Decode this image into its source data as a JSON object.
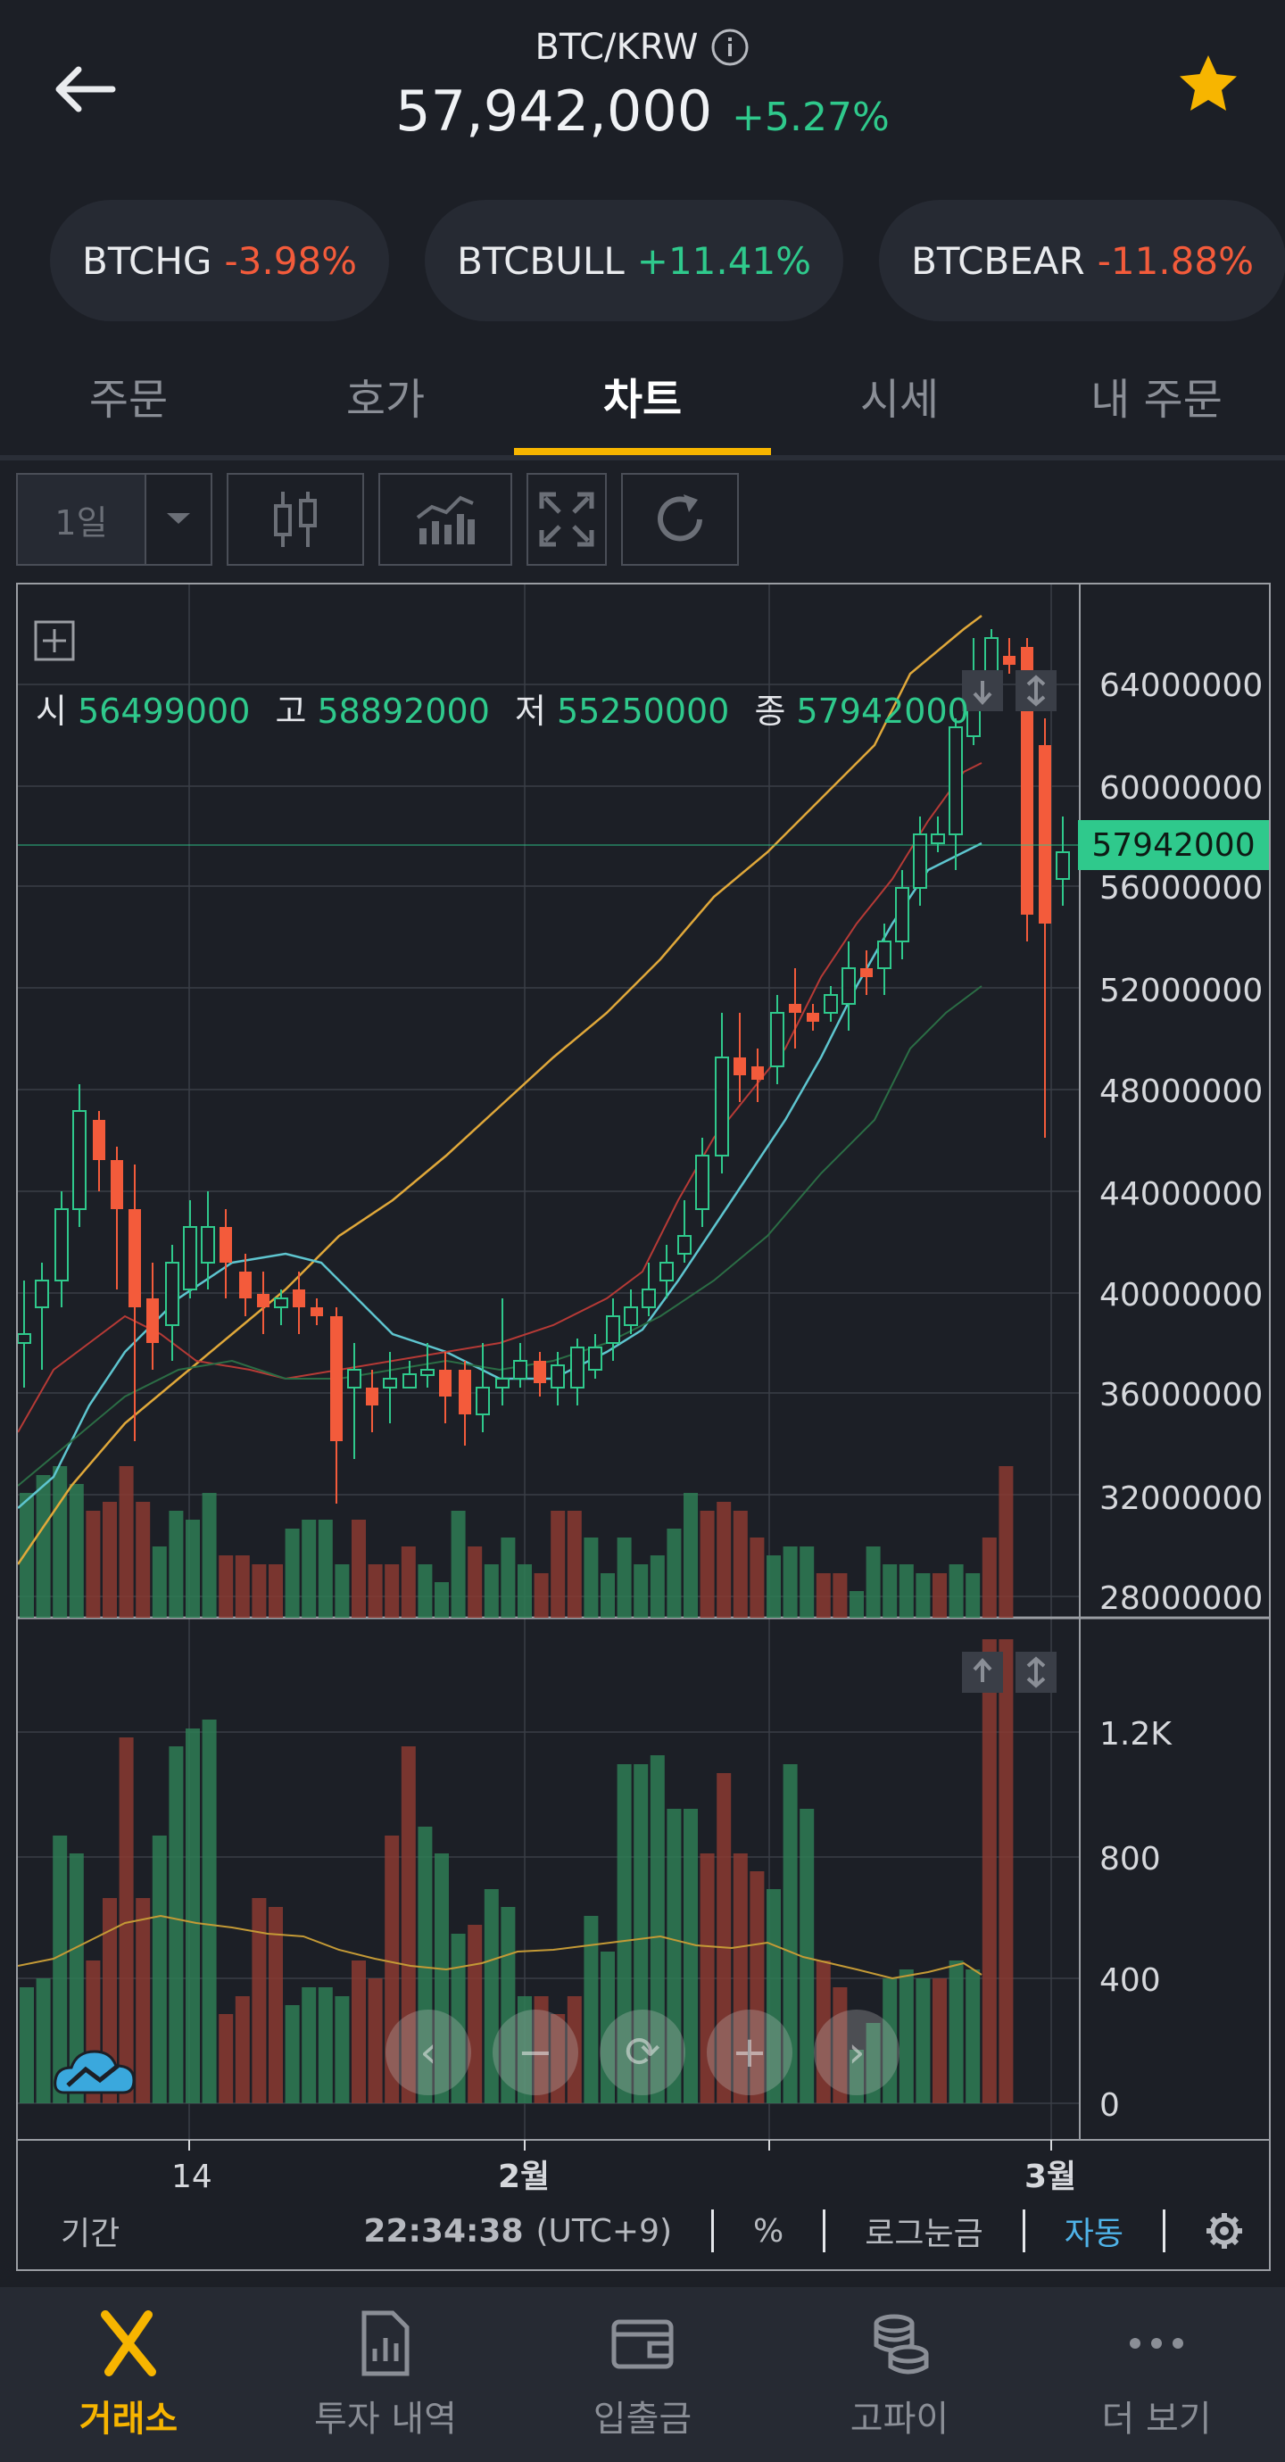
{
  "header": {
    "pair": "BTC/KRW",
    "price": "57,942,000",
    "change": "+5.27%"
  },
  "pills": [
    {
      "name": "BTCHG",
      "change": "-3.98%",
      "dir": "down"
    },
    {
      "name": "BTCBULL",
      "change": "+11.41%",
      "dir": "up"
    },
    {
      "name": "BTCBEAR",
      "change": "-11.88%",
      "dir": "down"
    }
  ],
  "tabs": [
    "주문",
    "호가",
    "차트",
    "시세",
    "내 주문"
  ],
  "toolbar": {
    "range_label": "1일"
  },
  "ohlc": {
    "open_label": "시",
    "open": "56499000",
    "high_label": "고",
    "high": "58892000",
    "low_label": "저",
    "low": "55250000",
    "close_label": "종",
    "close": "57942000"
  },
  "current_price_tag": "57942000",
  "chart_data": {
    "type": "candlestick",
    "price_axis_ticks": [
      "64000000",
      "60000000",
      "56000000",
      "52000000",
      "48000000",
      "44000000",
      "40000000",
      "36000000",
      "32000000",
      "28000000"
    ],
    "volume_axis_ticks": [
      "1.2K",
      "800",
      "400",
      "0"
    ],
    "x_ticks": [
      "14",
      "2월",
      "3월"
    ]
  },
  "footer": {
    "period": "기간",
    "time": "22:34:38",
    "timezone": "(UTC+9)",
    "percent": "%",
    "log_scale": "로그눈금",
    "auto": "자동"
  },
  "nav": [
    "거래소",
    "투자 내역",
    "입출금",
    "고파이",
    "더 보기"
  ],
  "colors": {
    "up": "#2fc98c",
    "down": "#f35b3b",
    "accent": "#f7b500",
    "auto": "#4fb3e8"
  }
}
